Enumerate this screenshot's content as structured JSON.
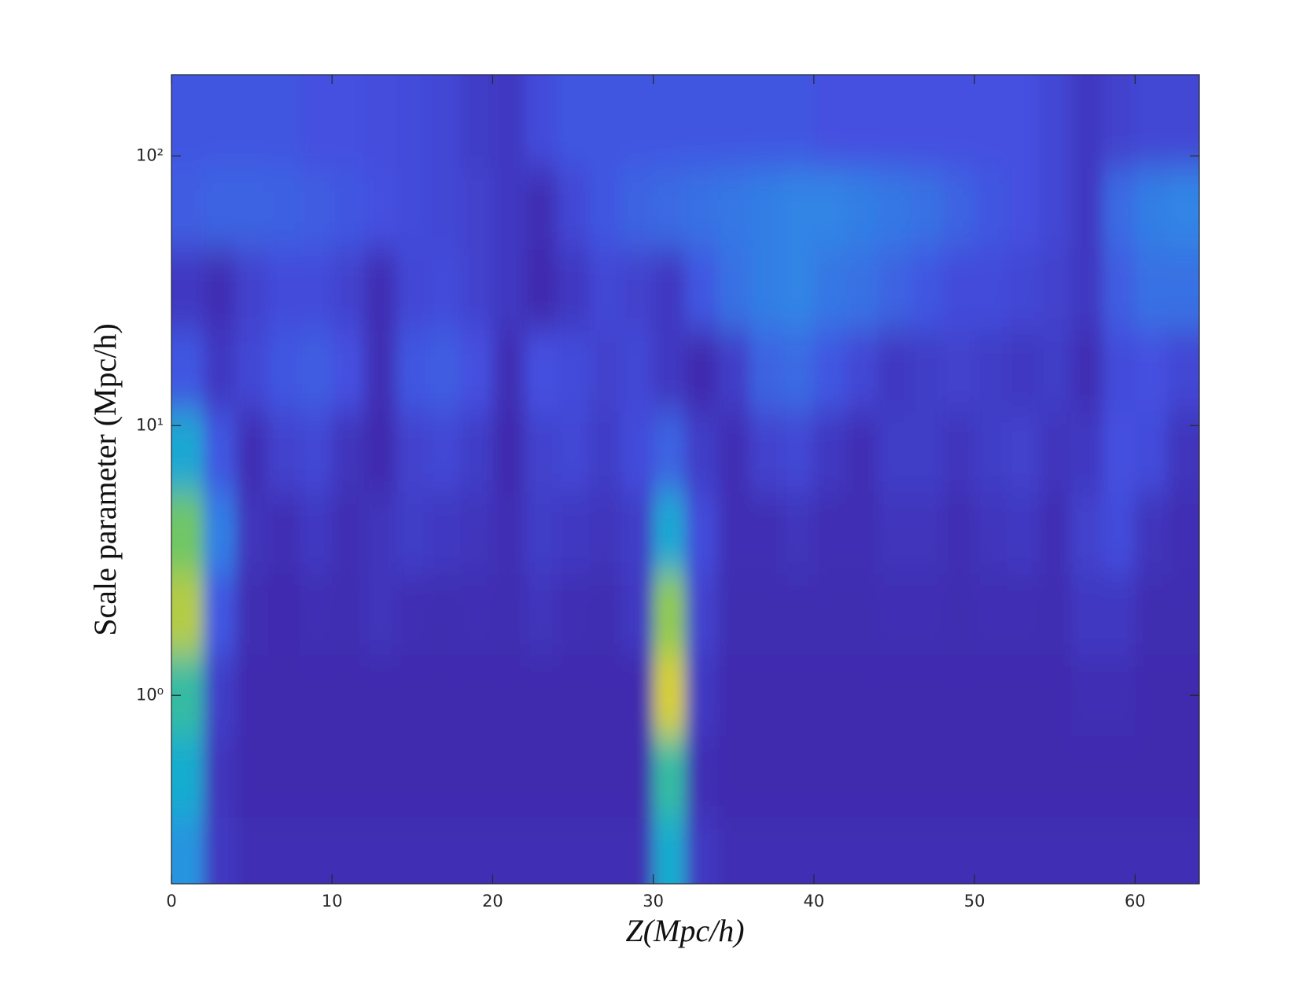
{
  "chart_data": {
    "type": "heatmap",
    "x_label": "Z(Mpc/h)",
    "y_label": "Scale parameter (Mpc/h)",
    "xlim": [
      0,
      64
    ],
    "xticks": [
      0,
      10,
      20,
      30,
      40,
      50,
      60
    ],
    "ylim": [
      0.2,
      200
    ],
    "y_scale": "log",
    "yticks": [
      {
        "value": 1,
        "label": "10⁰"
      },
      {
        "value": 10,
        "label": "10¹"
      },
      {
        "value": 100,
        "label": "10²"
      }
    ],
    "colormap": [
      "#3e26a8",
      "#4450e0",
      "#2d8be6",
      "#12b5c8",
      "#7cc85a",
      "#f9d22c"
    ],
    "zlim": [
      0.1,
      1
    ],
    "x": [
      1,
      3,
      5,
      7,
      9,
      11,
      13,
      15,
      17,
      19,
      21,
      23,
      25,
      27,
      29,
      31,
      33,
      35,
      37,
      39,
      41,
      43,
      45,
      47,
      49,
      51,
      53,
      55,
      57,
      59,
      61,
      63
    ],
    "y": [
      0.25,
      0.5,
      1,
      2,
      4,
      8,
      16,
      32,
      64,
      128
    ],
    "z": [
      [
        0.5,
        0.18,
        0.14,
        0.14,
        0.14,
        0.14,
        0.14,
        0.14,
        0.14,
        0.14,
        0.14,
        0.14,
        0.14,
        0.14,
        0.14,
        0.6,
        0.18,
        0.14,
        0.14,
        0.14,
        0.14,
        0.14,
        0.14,
        0.14,
        0.14,
        0.14,
        0.14,
        0.14,
        0.14,
        0.14,
        0.14,
        0.14
      ],
      [
        0.6,
        0.16,
        0.12,
        0.12,
        0.12,
        0.12,
        0.12,
        0.12,
        0.12,
        0.12,
        0.12,
        0.12,
        0.12,
        0.12,
        0.12,
        0.7,
        0.14,
        0.12,
        0.12,
        0.12,
        0.12,
        0.12,
        0.12,
        0.12,
        0.12,
        0.12,
        0.12,
        0.12,
        0.12,
        0.12,
        0.12,
        0.12
      ],
      [
        0.7,
        0.2,
        0.12,
        0.12,
        0.12,
        0.12,
        0.12,
        0.12,
        0.12,
        0.12,
        0.12,
        0.12,
        0.12,
        0.12,
        0.12,
        0.95,
        0.18,
        0.12,
        0.12,
        0.12,
        0.12,
        0.12,
        0.12,
        0.12,
        0.12,
        0.12,
        0.12,
        0.12,
        0.14,
        0.14,
        0.12,
        0.12
      ],
      [
        0.9,
        0.3,
        0.13,
        0.12,
        0.14,
        0.13,
        0.16,
        0.14,
        0.13,
        0.14,
        0.13,
        0.16,
        0.14,
        0.13,
        0.18,
        0.85,
        0.22,
        0.13,
        0.13,
        0.13,
        0.13,
        0.13,
        0.14,
        0.14,
        0.13,
        0.14,
        0.14,
        0.13,
        0.18,
        0.18,
        0.13,
        0.13
      ],
      [
        0.8,
        0.42,
        0.16,
        0.14,
        0.18,
        0.14,
        0.16,
        0.2,
        0.18,
        0.16,
        0.14,
        0.2,
        0.18,
        0.16,
        0.2,
        0.58,
        0.26,
        0.14,
        0.14,
        0.16,
        0.14,
        0.14,
        0.16,
        0.16,
        0.14,
        0.16,
        0.18,
        0.14,
        0.22,
        0.26,
        0.16,
        0.14
      ],
      [
        0.58,
        0.3,
        0.14,
        0.22,
        0.24,
        0.16,
        0.12,
        0.22,
        0.24,
        0.2,
        0.12,
        0.22,
        0.24,
        0.2,
        0.26,
        0.34,
        0.2,
        0.14,
        0.22,
        0.24,
        0.18,
        0.14,
        0.2,
        0.2,
        0.16,
        0.2,
        0.22,
        0.16,
        0.18,
        0.28,
        0.26,
        0.16
      ],
      [
        0.3,
        0.18,
        0.24,
        0.3,
        0.32,
        0.28,
        0.14,
        0.3,
        0.32,
        0.28,
        0.14,
        0.28,
        0.26,
        0.22,
        0.24,
        0.18,
        0.12,
        0.2,
        0.34,
        0.36,
        0.3,
        0.24,
        0.18,
        0.2,
        0.22,
        0.2,
        0.18,
        0.2,
        0.14,
        0.26,
        0.28,
        0.24
      ],
      [
        0.18,
        0.14,
        0.22,
        0.26,
        0.26,
        0.22,
        0.14,
        0.24,
        0.26,
        0.22,
        0.18,
        0.12,
        0.18,
        0.24,
        0.22,
        0.18,
        0.3,
        0.38,
        0.42,
        0.44,
        0.4,
        0.38,
        0.34,
        0.3,
        0.26,
        0.26,
        0.24,
        0.22,
        0.18,
        0.32,
        0.38,
        0.38
      ],
      [
        0.32,
        0.34,
        0.34,
        0.33,
        0.32,
        0.3,
        0.28,
        0.26,
        0.24,
        0.22,
        0.18,
        0.14,
        0.24,
        0.3,
        0.34,
        0.36,
        0.38,
        0.4,
        0.42,
        0.44,
        0.44,
        0.42,
        0.4,
        0.38,
        0.34,
        0.3,
        0.28,
        0.24,
        0.18,
        0.36,
        0.42,
        0.44
      ],
      [
        0.3,
        0.3,
        0.3,
        0.3,
        0.28,
        0.28,
        0.27,
        0.26,
        0.24,
        0.2,
        0.18,
        0.26,
        0.3,
        0.3,
        0.3,
        0.3,
        0.3,
        0.3,
        0.3,
        0.3,
        0.28,
        0.28,
        0.28,
        0.28,
        0.28,
        0.28,
        0.28,
        0.24,
        0.18,
        0.22,
        0.24,
        0.24
      ]
    ]
  }
}
